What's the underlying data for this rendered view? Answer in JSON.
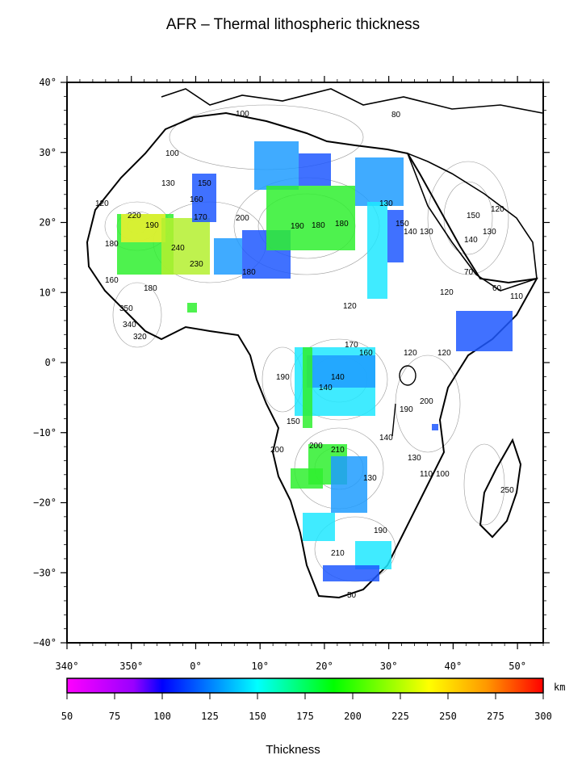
{
  "title": "AFR – Thermal lithospheric thickness",
  "colorbar": {
    "label": "Thickness",
    "unit": "km",
    "ticks": [
      "50",
      "75",
      "100",
      "125",
      "150",
      "175",
      "200",
      "225",
      "250",
      "275",
      "300"
    ],
    "range": [
      50,
      300
    ],
    "colors": [
      "#ff00ff",
      "#9900ff",
      "#0000ff",
      "#00ffff",
      "#00ff00",
      "#ffff00",
      "#ff9900",
      "#ff0000"
    ]
  },
  "map": {
    "lon_ticks": [
      "340°",
      "350°",
      "0°",
      "10°",
      "20°",
      "30°",
      "40°",
      "50°"
    ],
    "lat_ticks": [
      "40°",
      "30°",
      "20°",
      "10°",
      "0°",
      "−10°",
      "−20°",
      "−30°",
      "−40°"
    ],
    "lon_range": [
      340,
      54
    ],
    "lat_range": [
      -40,
      40
    ],
    "contour_labels": [
      "100",
      "100",
      "80",
      "130",
      "120",
      "150",
      "160",
      "170",
      "190",
      "220",
      "180",
      "240",
      "230",
      "200",
      "190",
      "180",
      "180",
      "130",
      "150",
      "140",
      "130",
      "120",
      "150",
      "130",
      "140",
      "120",
      "110",
      "60",
      "70",
      "120",
      "180",
      "350",
      "340",
      "320",
      "160",
      "120",
      "170",
      "180",
      "140",
      "140",
      "190",
      "120",
      "160",
      "200",
      "210",
      "150",
      "140",
      "130",
      "200",
      "110",
      "100",
      "130",
      "190",
      "210",
      "200",
      "190",
      "50",
      "250"
    ],
    "anomaly_colors": {
      "blue": "#1e58ff",
      "cyan_blue": "#1e9cff",
      "cyan": "#1ee8ff",
      "green": "#2ff02f",
      "yellow_green": "#b4f02f",
      "yellow": "#f0f02f",
      "orange": "#ffcc33"
    }
  }
}
